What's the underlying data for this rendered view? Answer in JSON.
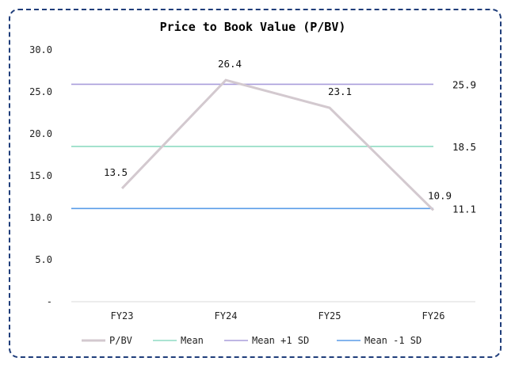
{
  "chart_data": {
    "type": "line",
    "title": "Price to Book Value (P/BV)",
    "categories": [
      "FY23",
      "FY24",
      "FY25",
      "FY26"
    ],
    "ylim": [
      0,
      30
    ],
    "yticks": [
      0,
      5,
      10,
      15,
      20,
      25,
      30
    ],
    "ytick_labels": [
      "-",
      "5.0",
      "10.0",
      "15.0",
      "20.0",
      "25.0",
      "30.0"
    ],
    "grid": false,
    "legend_position": "bottom",
    "series": [
      {
        "name": "P/BV",
        "values": [
          13.5,
          26.4,
          23.1,
          10.9
        ],
        "labels": [
          "13.5",
          "26.4",
          "23.1",
          "10.9"
        ],
        "color": "#d3c9cf",
        "width": 3
      },
      {
        "name": "Mean",
        "values": [
          18.5,
          18.5,
          18.5,
          18.5
        ],
        "labels": [
          "",
          "",
          "",
          "18.5"
        ],
        "color": "#8fdcc3",
        "width": 1.6
      },
      {
        "name": "Mean +1 SD",
        "values": [
          25.9,
          25.9,
          25.9,
          25.9
        ],
        "labels": [
          "",
          "",
          "",
          "25.9"
        ],
        "color": "#a99ddb",
        "width": 1.6
      },
      {
        "name": "Mean -1 SD",
        "values": [
          11.1,
          11.1,
          11.1,
          11.1
        ],
        "labels": [
          "",
          "",
          "",
          "11.1"
        ],
        "color": "#5a9ce8",
        "width": 1.6
      }
    ]
  }
}
